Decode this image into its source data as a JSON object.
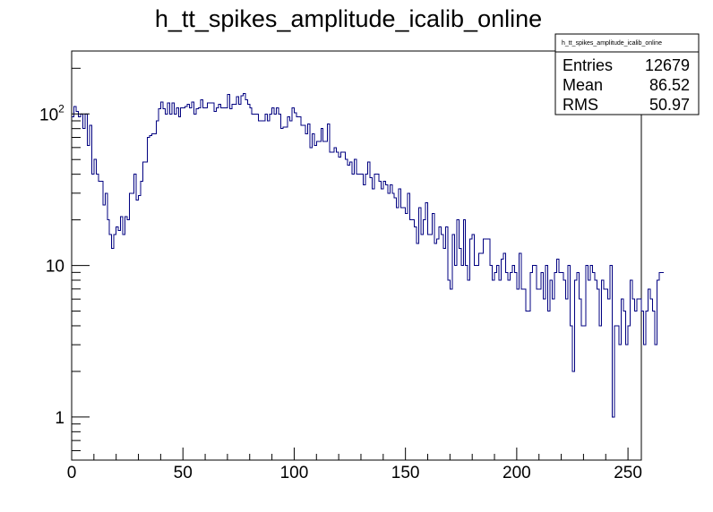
{
  "page": {
    "title": "h_tt_spikes_amplitude_icalib_online"
  },
  "stats_box": {
    "title": "h_tt_spikes_amplitude_icalib_online",
    "rows": [
      {
        "label": "Entries",
        "value": "12679"
      },
      {
        "label": "Mean",
        "value": "86.52"
      },
      {
        "label": "RMS",
        "value": "50.97"
      }
    ]
  },
  "colors": {
    "histogram_line": "#000080",
    "axes": "#000000",
    "background": "#ffffff"
  },
  "chart_data": {
    "type": "histogram",
    "title": "h_tt_spikes_amplitude_icalib_online",
    "xlabel": "",
    "ylabel": "",
    "xlim": [
      0,
      256
    ],
    "ylim": [
      0.52,
      260
    ],
    "log_y": true,
    "grid": false,
    "legend_position": "top-right stats box",
    "bin_width": 1,
    "x_ticks": [
      {
        "value": 0,
        "label": "0"
      },
      {
        "value": 50,
        "label": "50"
      },
      {
        "value": 100,
        "label": "100"
      },
      {
        "value": 150,
        "label": "150"
      },
      {
        "value": 200,
        "label": "200"
      },
      {
        "value": 250,
        "label": "250"
      }
    ],
    "y_ticks": [
      {
        "value": 1,
        "label": "1",
        "exponent": ""
      },
      {
        "value": 10,
        "label": "10",
        "exponent": ""
      },
      {
        "value": 100,
        "label": "10",
        "exponent": "2"
      }
    ],
    "series": [
      {
        "values": [
          96,
          112,
          104,
          96,
          100,
          80,
          100,
          62,
          84,
          40,
          50,
          40,
          36,
          36,
          25,
          30,
          20,
          16,
          13,
          16,
          18,
          17,
          21,
          16,
          21,
          20,
          30,
          30,
          40,
          27,
          29,
          36,
          48,
          48,
          70,
          72,
          74,
          74,
          90,
          108,
          120,
          108,
          100,
          118,
          100,
          118,
          100,
          110,
          96,
          110,
          110,
          112,
          116,
          110,
          120,
          100,
          108,
          110,
          124,
          110,
          110,
          118,
          118,
          118,
          104,
          110,
          116,
          110,
          110,
          110,
          134,
          108,
          116,
          116,
          130,
          116,
          132,
          136,
          124,
          116,
          110,
          100,
          100,
          100,
          90,
          90,
          90,
          100,
          90,
          100,
          110,
          100,
          110,
          100,
          80,
          82,
          82,
          96,
          90,
          110,
          102,
          96,
          96,
          84,
          84,
          74,
          86,
          60,
          74,
          62,
          66,
          66,
          80,
          66,
          66,
          86,
          56,
          56,
          60,
          56,
          52,
          56,
          56,
          50,
          46,
          48,
          40,
          50,
          40,
          40,
          40,
          34,
          40,
          48,
          38,
          32,
          40,
          40,
          36,
          32,
          36,
          34,
          30,
          34,
          30,
          28,
          24,
          32,
          24,
          24,
          22,
          30,
          20,
          20,
          18,
          14,
          24,
          16,
          20,
          26,
          16,
          16,
          22,
          14,
          15,
          18,
          16,
          13,
          18,
          8,
          7,
          16,
          10,
          20,
          13,
          10,
          20,
          10,
          8,
          15,
          16,
          10,
          10,
          12,
          12,
          15,
          15,
          15,
          10,
          8,
          9,
          10,
          8,
          11,
          12,
          9,
          8,
          9,
          10,
          9,
          7,
          12,
          7,
          7,
          5,
          5,
          9,
          10,
          10,
          7,
          7,
          9,
          6,
          10,
          5,
          8,
          6,
          9,
          11,
          9,
          9,
          8,
          6,
          10,
          4,
          2,
          8,
          9,
          6,
          4,
          4,
          10,
          8,
          10,
          9,
          8,
          7,
          4,
          8,
          7,
          7,
          6,
          10,
          1,
          4,
          4,
          3,
          6,
          5,
          3,
          4,
          8,
          6,
          5,
          6,
          6,
          5,
          3,
          5,
          7,
          6,
          5,
          3,
          8,
          9,
          9
        ]
      }
    ]
  }
}
